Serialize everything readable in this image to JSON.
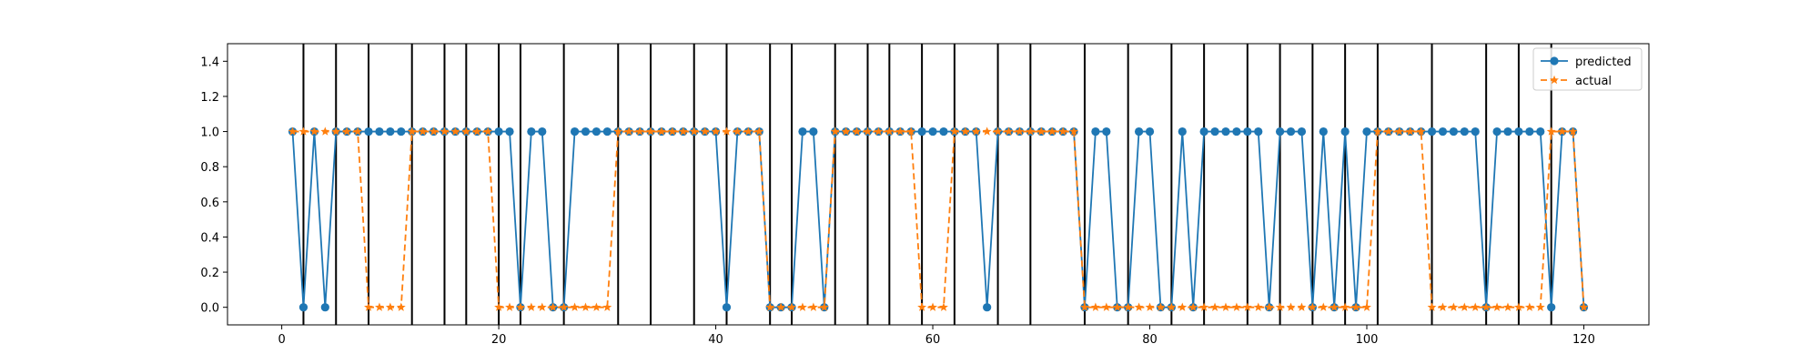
{
  "chart_data": {
    "type": "line",
    "title": "",
    "xlabel": "",
    "ylabel": "",
    "xlim": [
      -5,
      126
    ],
    "ylim": [
      -0.1,
      1.5
    ],
    "x_ticks": [
      0,
      20,
      40,
      60,
      80,
      100,
      120
    ],
    "y_ticks": [
      0.0,
      0.2,
      0.4,
      0.6,
      0.8,
      1.0,
      1.2,
      1.4
    ],
    "x_tick_labels": [
      "0",
      "20",
      "40",
      "60",
      "80",
      "100",
      "120"
    ],
    "y_tick_labels": [
      "0.0",
      "0.2",
      "0.4",
      "0.6",
      "0.8",
      "1.0",
      "1.2",
      "1.4"
    ],
    "grid": false,
    "legend_position": "top-right",
    "vertical_lines": [
      2,
      5,
      8,
      12,
      15,
      17,
      20,
      22,
      26,
      31,
      34,
      38,
      41,
      45,
      47,
      51,
      54,
      56,
      59,
      62,
      66,
      69,
      74,
      78,
      82,
      85,
      89,
      92,
      95,
      98,
      101,
      106,
      111,
      114,
      117
    ],
    "x": [
      1,
      2,
      3,
      4,
      5,
      6,
      7,
      8,
      9,
      10,
      11,
      12,
      13,
      14,
      15,
      16,
      17,
      18,
      19,
      20,
      21,
      22,
      23,
      24,
      25,
      26,
      27,
      28,
      29,
      30,
      31,
      32,
      33,
      34,
      35,
      36,
      37,
      38,
      39,
      40,
      41,
      42,
      43,
      44,
      45,
      46,
      47,
      48,
      49,
      50,
      51,
      52,
      53,
      54,
      55,
      56,
      57,
      58,
      59,
      60,
      61,
      62,
      63,
      64,
      65,
      66,
      67,
      68,
      69,
      70,
      71,
      72,
      73,
      74,
      75,
      76,
      77,
      78,
      79,
      80,
      81,
      82,
      83,
      84,
      85,
      86,
      87,
      88,
      89,
      90,
      91,
      92,
      93,
      94,
      95,
      96,
      97,
      98,
      99,
      100,
      101,
      102,
      103,
      104,
      105,
      106,
      107,
      108,
      109,
      110,
      111,
      112,
      113,
      114,
      115,
      116,
      117,
      118,
      119,
      120
    ],
    "series": [
      {
        "name": "predicted",
        "color": "#1f77b4",
        "marker": "circle",
        "linestyle": "solid",
        "values": [
          1,
          0,
          1,
          0,
          1,
          1,
          1,
          1,
          1,
          1,
          1,
          1,
          1,
          1,
          1,
          1,
          1,
          1,
          1,
          1,
          1,
          0,
          1,
          1,
          0,
          0,
          1,
          1,
          1,
          1,
          1,
          1,
          1,
          1,
          1,
          1,
          1,
          1,
          1,
          1,
          0,
          1,
          1,
          1,
          0,
          0,
          0,
          1,
          1,
          0,
          1,
          1,
          1,
          1,
          1,
          1,
          1,
          1,
          1,
          1,
          1,
          1,
          1,
          1,
          0,
          1,
          1,
          1,
          1,
          1,
          1,
          1,
          1,
          0,
          1,
          1,
          0,
          0,
          1,
          1,
          0,
          0,
          1,
          0,
          1,
          1,
          1,
          1,
          1,
          1,
          0,
          1,
          1,
          1,
          0,
          1,
          0,
          1,
          0,
          1,
          1,
          1,
          1,
          1,
          1,
          1,
          1,
          1,
          1,
          1,
          0,
          1,
          1,
          1,
          1,
          1,
          0,
          1,
          1,
          0
        ]
      },
      {
        "name": "actual",
        "color": "#ff7f0e",
        "marker": "star",
        "linestyle": "dashed",
        "values": [
          1,
          1,
          1,
          1,
          1,
          1,
          1,
          0,
          0,
          0,
          0,
          1,
          1,
          1,
          1,
          1,
          1,
          1,
          1,
          0,
          0,
          0,
          0,
          0,
          0,
          0,
          0,
          0,
          0,
          0,
          1,
          1,
          1,
          1,
          1,
          1,
          1,
          1,
          1,
          1,
          1,
          1,
          1,
          1,
          0,
          0,
          0,
          0,
          0,
          0,
          1,
          1,
          1,
          1,
          1,
          1,
          1,
          1,
          0,
          0,
          0,
          1,
          1,
          1,
          1,
          1,
          1,
          1,
          1,
          1,
          1,
          1,
          1,
          0,
          0,
          0,
          0,
          0,
          0,
          0,
          0,
          0,
          0,
          0,
          0,
          0,
          0,
          0,
          0,
          0,
          0,
          0,
          0,
          0,
          0,
          0,
          0,
          0,
          0,
          0,
          1,
          1,
          1,
          1,
          1,
          0,
          0,
          0,
          0,
          0,
          0,
          0,
          0,
          0,
          0,
          0,
          1,
          1,
          1,
          0
        ]
      }
    ]
  }
}
